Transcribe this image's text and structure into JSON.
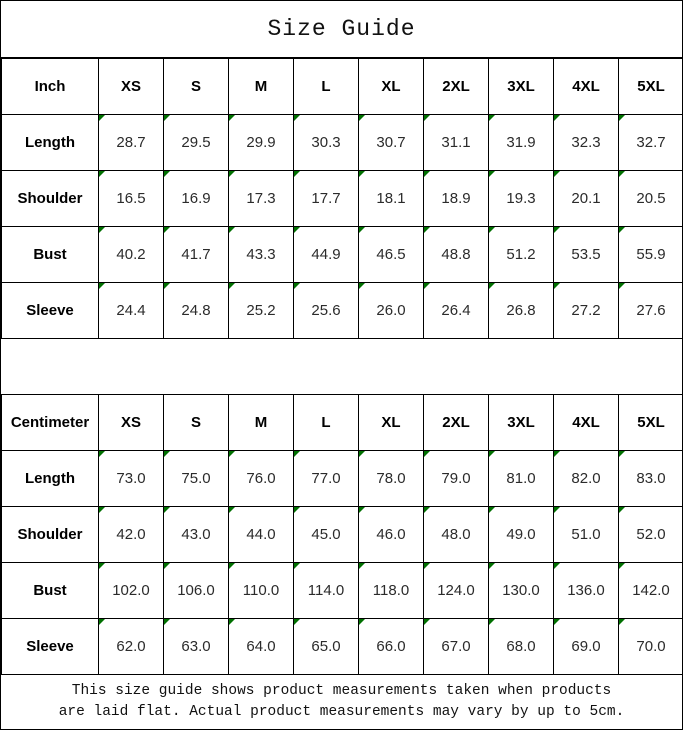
{
  "title": "Size Guide",
  "sizes": [
    "XS",
    "S",
    "M",
    "L",
    "XL",
    "2XL",
    "3XL",
    "4XL",
    "5XL"
  ],
  "tables": [
    {
      "unit_label": "Inch",
      "rows": [
        {
          "label": "Length",
          "values": [
            "28.7",
            "29.5",
            "29.9",
            "30.3",
            "30.7",
            "31.1",
            "31.9",
            "32.3",
            "32.7"
          ]
        },
        {
          "label": "Shoulder",
          "values": [
            "16.5",
            "16.9",
            "17.3",
            "17.7",
            "18.1",
            "18.9",
            "19.3",
            "20.1",
            "20.5"
          ]
        },
        {
          "label": "Bust",
          "values": [
            "40.2",
            "41.7",
            "43.3",
            "44.9",
            "46.5",
            "48.8",
            "51.2",
            "53.5",
            "55.9"
          ]
        },
        {
          "label": "Sleeve",
          "values": [
            "24.4",
            "24.8",
            "25.2",
            "25.6",
            "26.0",
            "26.4",
            "26.8",
            "27.2",
            "27.6"
          ]
        }
      ]
    },
    {
      "unit_label": "Centimeter",
      "rows": [
        {
          "label": "Length",
          "values": [
            "73.0",
            "75.0",
            "76.0",
            "77.0",
            "78.0",
            "79.0",
            "81.0",
            "82.0",
            "83.0"
          ]
        },
        {
          "label": "Shoulder",
          "values": [
            "42.0",
            "43.0",
            "44.0",
            "45.0",
            "46.0",
            "48.0",
            "49.0",
            "51.0",
            "52.0"
          ]
        },
        {
          "label": "Bust",
          "values": [
            "102.0",
            "106.0",
            "110.0",
            "114.0",
            "118.0",
            "124.0",
            "130.0",
            "136.0",
            "142.0"
          ]
        },
        {
          "label": "Sleeve",
          "values": [
            "62.0",
            "63.0",
            "64.0",
            "65.0",
            "66.0",
            "67.0",
            "68.0",
            "69.0",
            "70.0"
          ]
        }
      ]
    }
  ],
  "footer": {
    "line1": "This size guide shows product measurements taken when products",
    "line2": "are laid flat. Actual product measurements may vary by up to 5cm."
  },
  "colors": {
    "marker_green": "#007000",
    "border": "#000000",
    "background": "#ffffff"
  },
  "markers": {
    "numeric_cell_marker": "green-corner-triangle"
  }
}
